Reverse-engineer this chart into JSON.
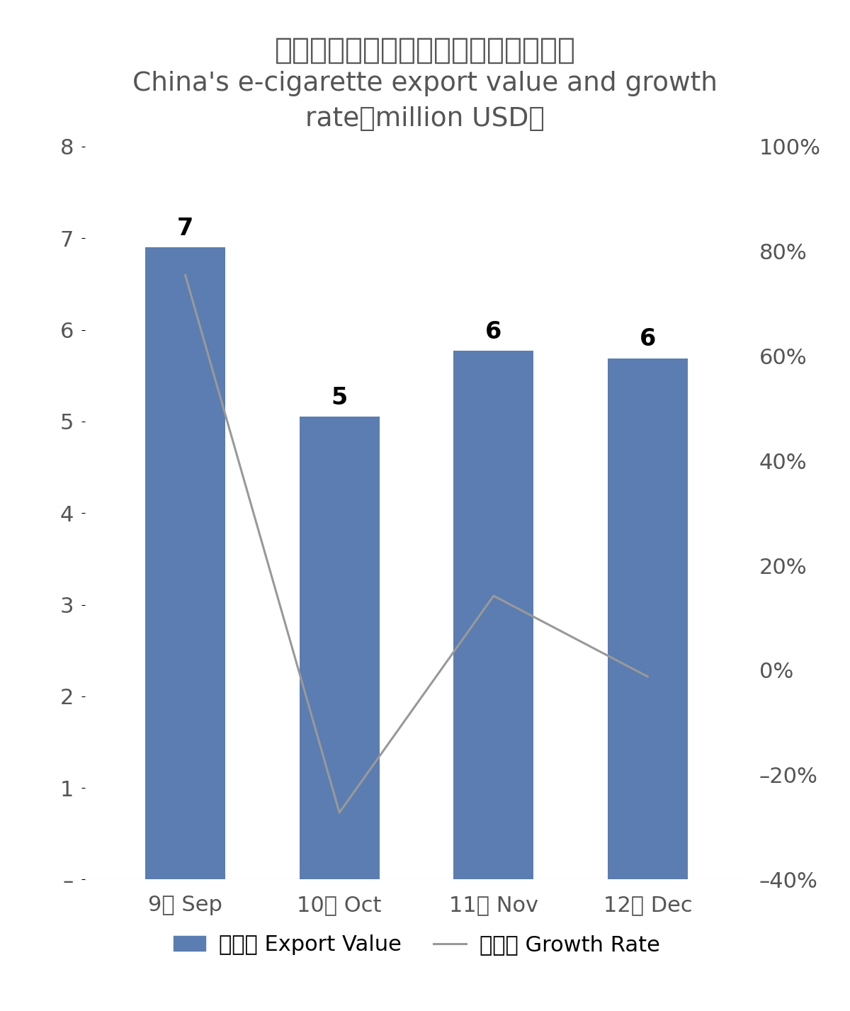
{
  "title_cn": "中国电子烟出口额及增速（百万美元）",
  "title_en_line1": "China's e-cigarette export value and growth",
  "title_en_line2": "rate（million USD）",
  "categories": [
    "9月 Sep",
    "10月 Oct",
    "11月 Nov",
    "12月 Dec"
  ],
  "bar_values": [
    6.9,
    5.05,
    5.77,
    5.69
  ],
  "bar_labels": [
    "7",
    "5",
    "6",
    "6"
  ],
  "growth_rates": [
    0.755,
    -0.272,
    0.142,
    -0.0124
  ],
  "bar_color": "#5B7DB1",
  "line_color": "#999999",
  "left_ylim": [
    0,
    8
  ],
  "left_yticks": [
    0,
    1,
    2,
    3,
    4,
    5,
    6,
    7,
    8
  ],
  "left_yticklabels": [
    "–",
    "1",
    "2",
    "3",
    "4",
    "5",
    "6",
    "7",
    "8"
  ],
  "right_ylim": [
    -0.4,
    1.0
  ],
  "right_yticks": [
    -0.4,
    -0.2,
    0.0,
    0.2,
    0.4,
    0.6,
    0.8,
    1.0
  ],
  "right_yticklabels": [
    "–40%",
    "–20%",
    "0%",
    "20%",
    "40%",
    "60%",
    "80%",
    "100%"
  ],
  "legend_bar_label": "出口额 Export Value",
  "legend_line_label": "增长率 Growth Rate",
  "bg_color": "#FFFFFF",
  "figsize": [
    12.0,
    14.27
  ],
  "dpi": 100
}
